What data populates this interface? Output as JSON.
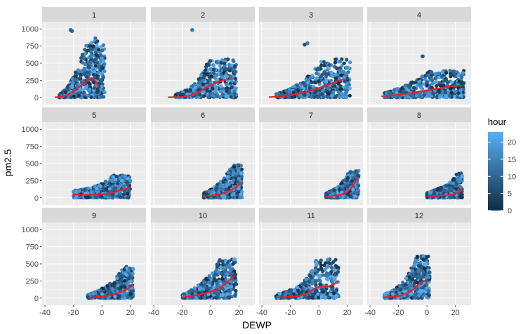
{
  "chart_data": {
    "type": "scatter",
    "facet_by": "month",
    "panels": [
      {
        "label": "1",
        "scatter_extent": {
          "x": [
            -30,
            2
          ],
          "y": [
            0,
            870
          ]
        },
        "outliers": [
          [
            -22,
            985
          ],
          [
            -21,
            970
          ]
        ],
        "smooth": [
          [
            -33,
            2
          ],
          [
            -28,
            10
          ],
          [
            -24,
            40
          ],
          [
            -20,
            90
          ],
          [
            -16,
            150
          ],
          [
            -12,
            220
          ],
          [
            -8,
            280
          ],
          [
            -5,
            250
          ],
          [
            -2,
            150
          ]
        ]
      },
      {
        "label": "2",
        "scatter_extent": {
          "x": [
            -25,
            18
          ],
          "y": [
            0,
            560
          ]
        },
        "outliers": [
          [
            -13,
            985
          ]
        ],
        "smooth": [
          [
            -30,
            2
          ],
          [
            -22,
            5
          ],
          [
            -15,
            25
          ],
          [
            -10,
            60
          ],
          [
            -5,
            120
          ],
          [
            0,
            180
          ],
          [
            5,
            230
          ],
          [
            10,
            255
          ],
          [
            15,
            270
          ]
        ]
      },
      {
        "label": "3",
        "scatter_extent": {
          "x": [
            -30,
            22
          ],
          "y": [
            0,
            560
          ]
        },
        "outliers": [
          [
            -8,
            790
          ],
          [
            -10,
            770
          ]
        ],
        "smooth": [
          [
            -35,
            5
          ],
          [
            -28,
            10
          ],
          [
            -20,
            30
          ],
          [
            -12,
            60
          ],
          [
            -5,
            100
          ],
          [
            2,
            150
          ],
          [
            10,
            210
          ],
          [
            18,
            270
          ]
        ]
      },
      {
        "label": "4",
        "scatter_extent": {
          "x": [
            -30,
            26
          ],
          "y": [
            0,
            400
          ]
        },
        "outliers": [
          [
            -3,
            600
          ]
        ],
        "smooth": [
          [
            -32,
            15
          ],
          [
            -24,
            30
          ],
          [
            -16,
            50
          ],
          [
            -8,
            75
          ],
          [
            0,
            100
          ],
          [
            8,
            130
          ],
          [
            16,
            160
          ],
          [
            24,
            175
          ]
        ]
      },
      {
        "label": "5",
        "scatter_extent": {
          "x": [
            -20,
            20
          ],
          "y": [
            0,
            330
          ]
        },
        "outliers": [],
        "smooth": [
          [
            -20,
            50
          ],
          [
            -14,
            45
          ],
          [
            -8,
            40
          ],
          [
            -2,
            45
          ],
          [
            4,
            60
          ],
          [
            10,
            90
          ],
          [
            16,
            130
          ],
          [
            20,
            150
          ]
        ]
      },
      {
        "label": "6",
        "scatter_extent": {
          "x": [
            -5,
            22
          ],
          "y": [
            0,
            480
          ]
        },
        "outliers": [],
        "smooth": [
          [
            -5,
            20
          ],
          [
            0,
            30
          ],
          [
            5,
            45
          ],
          [
            10,
            70
          ],
          [
            15,
            120
          ],
          [
            20,
            190
          ],
          [
            22,
            220
          ]
        ]
      },
      {
        "label": "7",
        "scatter_extent": {
          "x": [
            5,
            28
          ],
          "y": [
            0,
            400
          ]
        },
        "outliers": [],
        "smooth": [
          [
            5,
            20
          ],
          [
            10,
            25
          ],
          [
            15,
            40
          ],
          [
            20,
            80
          ],
          [
            24,
            170
          ],
          [
            27,
            290
          ]
        ]
      },
      {
        "label": "8",
        "scatter_extent": {
          "x": [
            0,
            25
          ],
          "y": [
            0,
            370
          ]
        },
        "outliers": [],
        "smooth": [
          [
            0,
            20
          ],
          [
            6,
            25
          ],
          [
            12,
            30
          ],
          [
            18,
            45
          ],
          [
            22,
            80
          ],
          [
            25,
            140
          ]
        ]
      },
      {
        "label": "9",
        "scatter_extent": {
          "x": [
            -10,
            22
          ],
          "y": [
            0,
            460
          ]
        },
        "outliers": [],
        "smooth": [
          [
            -10,
            5
          ],
          [
            -4,
            15
          ],
          [
            2,
            30
          ],
          [
            8,
            50
          ],
          [
            14,
            90
          ],
          [
            19,
            150
          ],
          [
            22,
            200
          ]
        ]
      },
      {
        "label": "10",
        "scatter_extent": {
          "x": [
            -20,
            18
          ],
          "y": [
            0,
            570
          ]
        },
        "outliers": [],
        "smooth": [
          [
            -20,
            10
          ],
          [
            -14,
            25
          ],
          [
            -8,
            50
          ],
          [
            -2,
            80
          ],
          [
            4,
            120
          ],
          [
            10,
            200
          ],
          [
            14,
            280
          ],
          [
            17,
            330
          ]
        ]
      },
      {
        "label": "11",
        "scatter_extent": {
          "x": [
            -30,
            14
          ],
          "y": [
            0,
            570
          ]
        },
        "outliers": [],
        "smooth": [
          [
            -30,
            10
          ],
          [
            -22,
            15
          ],
          [
            -14,
            30
          ],
          [
            -8,
            70
          ],
          [
            -2,
            150
          ],
          [
            2,
            170
          ],
          [
            6,
            160
          ],
          [
            10,
            200
          ],
          [
            14,
            250
          ]
        ]
      },
      {
        "label": "12",
        "scatter_extent": {
          "x": [
            -30,
            2
          ],
          "y": [
            0,
            620
          ]
        },
        "outliers": [],
        "smooth": [
          [
            -30,
            10
          ],
          [
            -24,
            20
          ],
          [
            -18,
            40
          ],
          [
            -14,
            70
          ],
          [
            -10,
            120
          ],
          [
            -6,
            200
          ],
          [
            -2,
            250
          ],
          [
            1,
            240
          ]
        ]
      }
    ],
    "xlabel": "DEWP",
    "ylabel": "pm2.5",
    "xlim": [
      -42,
      31
    ],
    "ylim": [
      -105,
      1105
    ],
    "x_ticks": [
      -40,
      -20,
      0,
      20
    ],
    "y_ticks": [
      0,
      250,
      500,
      750,
      1000
    ],
    "legend": {
      "title": "hour",
      "ticks": [
        0,
        5,
        10,
        15,
        20
      ],
      "range": [
        0,
        23
      ],
      "position": "right"
    },
    "grid": true,
    "colors": {
      "low": "#132B43",
      "high": "#56B1F7",
      "smooth": "#e8202a",
      "panel_bg": "#ebebeb",
      "strip_bg": "#d9d9d9"
    }
  }
}
